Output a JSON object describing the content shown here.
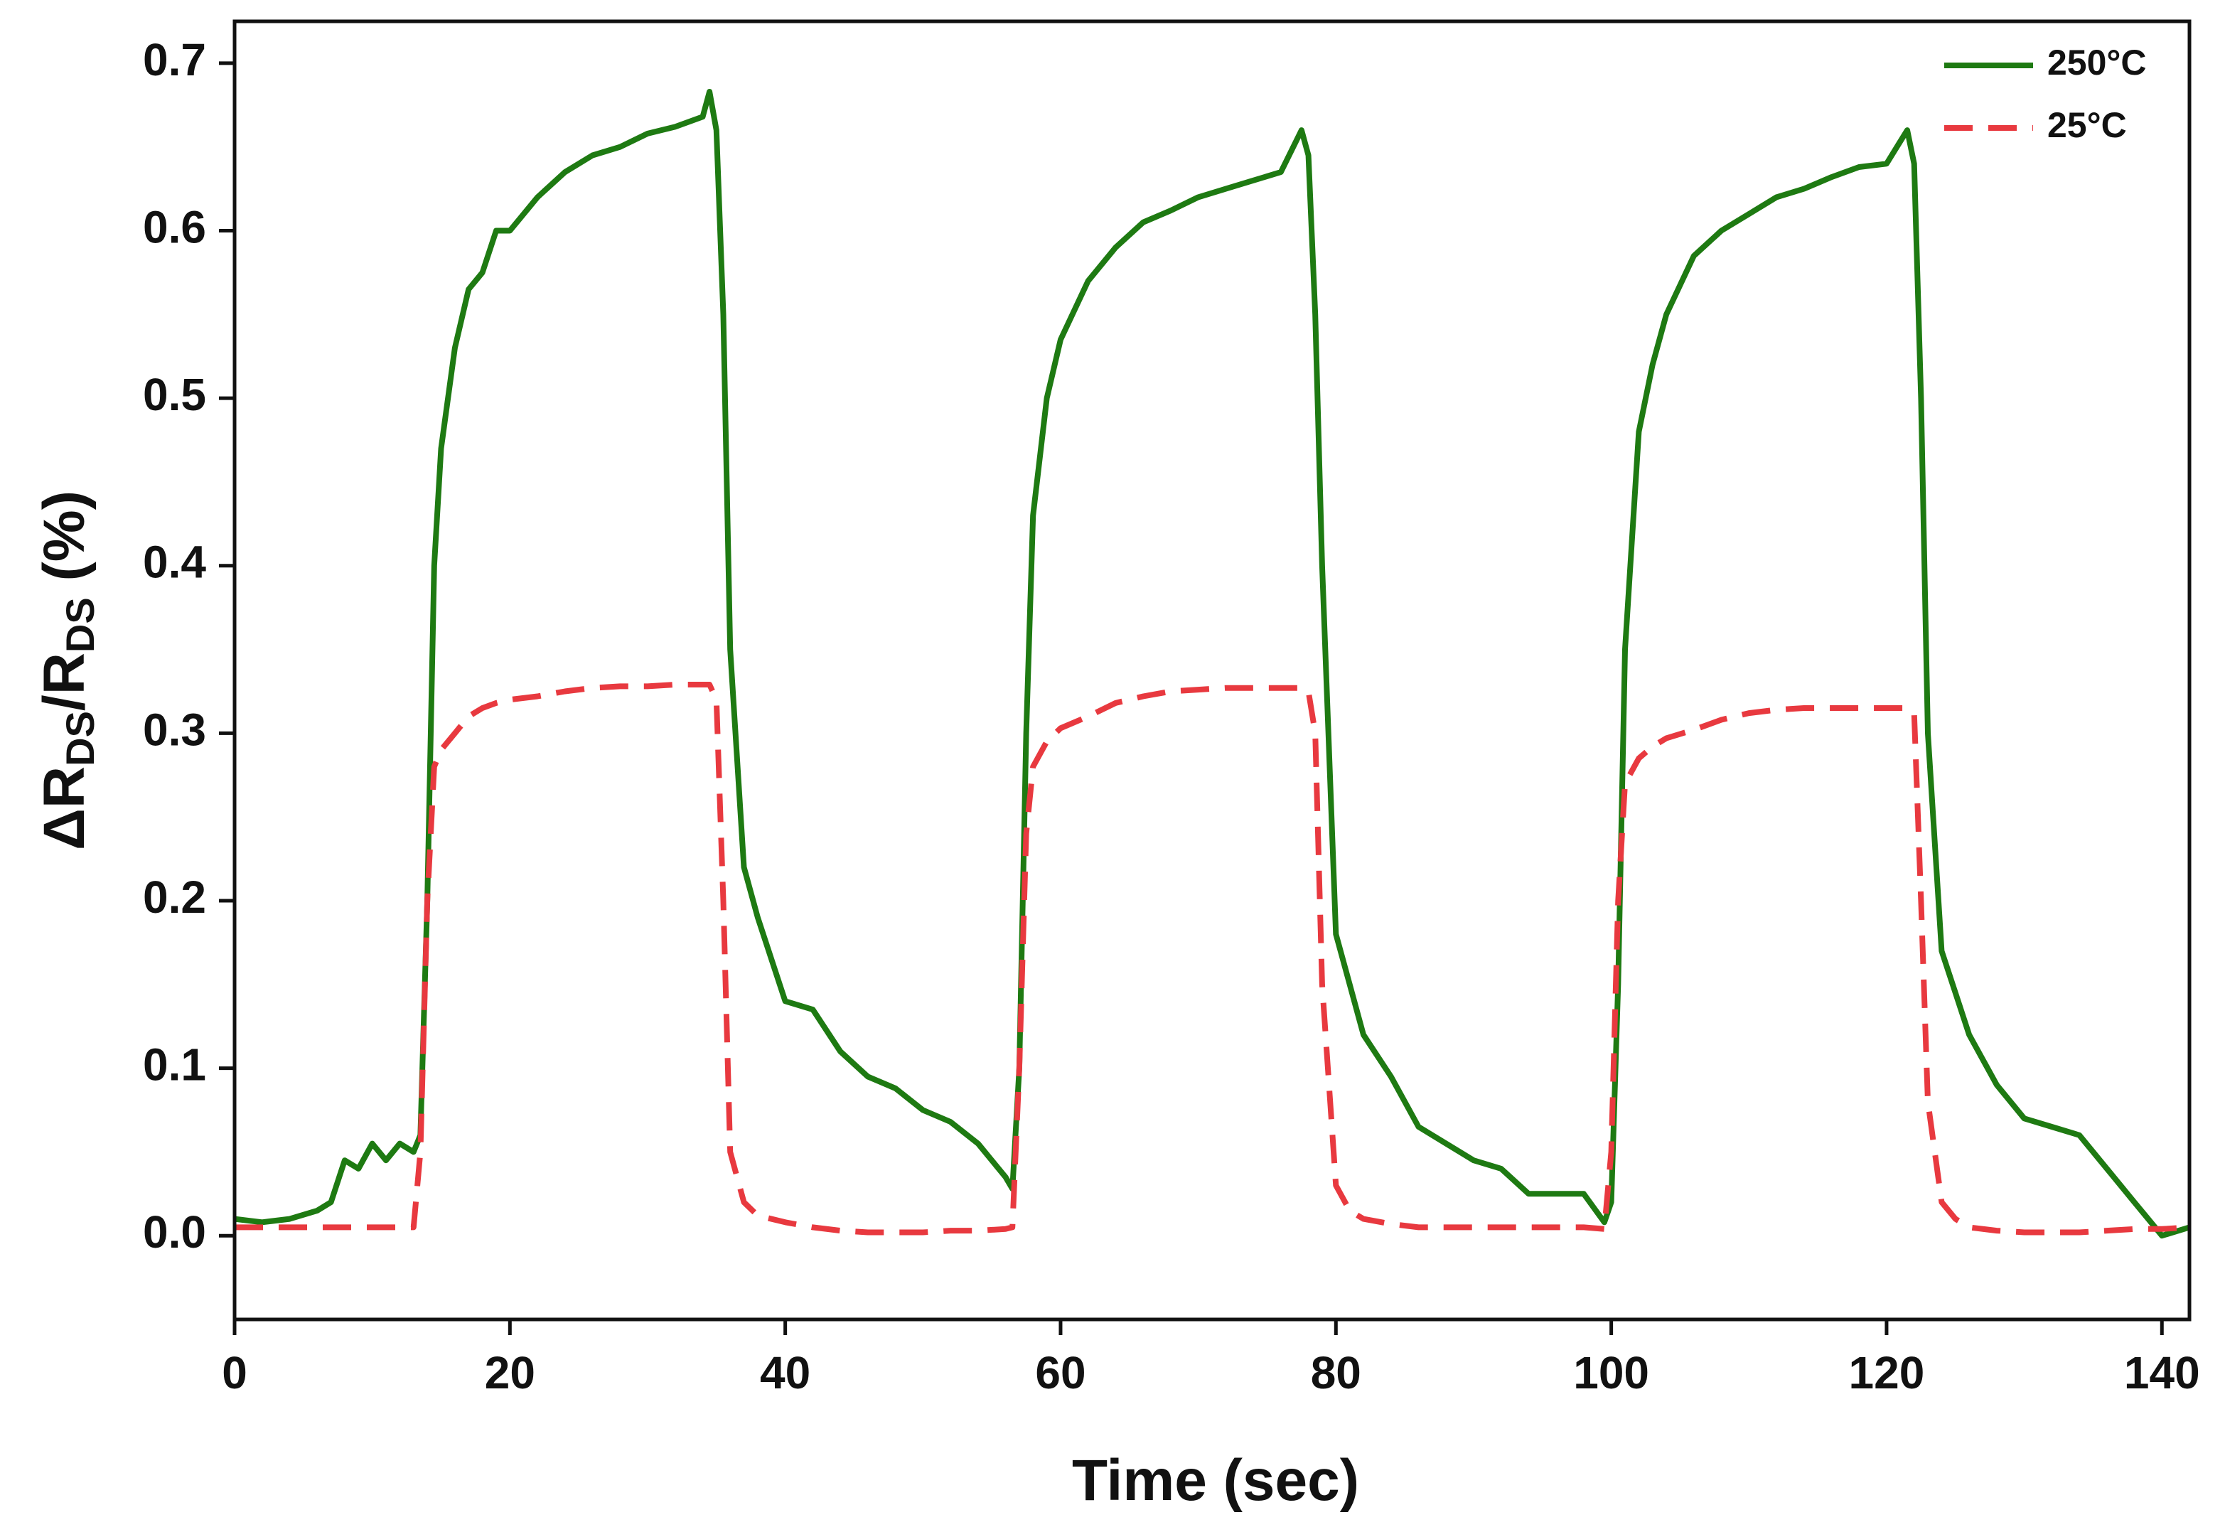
{
  "chart_data": {
    "type": "line",
    "xlabel": "Time (sec)",
    "ylabel": [
      "ΔR",
      "DS",
      "/R",
      "DS",
      " (%)"
    ],
    "x": [
      0,
      2,
      4,
      6,
      7,
      8,
      9,
      10,
      11,
      12,
      13,
      13.5,
      14,
      14.5,
      15,
      16,
      17,
      18,
      19,
      20,
      22,
      24,
      26,
      28,
      30,
      32,
      34,
      34.5,
      35,
      35.5,
      36,
      37,
      38,
      40,
      42,
      44,
      46,
      48,
      50,
      52,
      54,
      56,
      56.5,
      57,
      57.5,
      58,
      59,
      60,
      62,
      64,
      66,
      68,
      70,
      72,
      74,
      76,
      77.5,
      78,
      78.5,
      79,
      80,
      81,
      82,
      84,
      86,
      88,
      90,
      92,
      94,
      96,
      98,
      99.5,
      100,
      100.5,
      101,
      102,
      103,
      104,
      106,
      108,
      110,
      112,
      114,
      116,
      118,
      120,
      121.5,
      122,
      122.5,
      123,
      124,
      125,
      126,
      128,
      130,
      132,
      134,
      136,
      138,
      139,
      140,
      142
    ],
    "series": [
      {
        "name": "250°C",
        "color": "#1e7a12",
        "dash": false,
        "values": [
          0.01,
          0.008,
          0.01,
          0.015,
          0.02,
          0.045,
          0.04,
          0.055,
          0.045,
          0.055,
          0.05,
          0.06,
          0.2,
          0.4,
          0.47,
          0.53,
          0.565,
          0.575,
          0.6,
          0.6,
          0.62,
          0.635,
          0.645,
          0.65,
          0.658,
          0.662,
          0.668,
          0.683,
          0.66,
          0.55,
          0.35,
          0.22,
          0.19,
          0.14,
          0.135,
          0.11,
          0.095,
          0.088,
          0.075,
          0.068,
          0.055,
          0.035,
          0.028,
          0.1,
          0.3,
          0.43,
          0.5,
          0.535,
          0.57,
          0.59,
          0.605,
          0.612,
          0.62,
          0.625,
          0.63,
          0.635,
          0.66,
          0.645,
          0.55,
          0.4,
          0.18,
          0.15,
          0.12,
          0.095,
          0.065,
          0.055,
          0.045,
          0.04,
          0.025,
          0.025,
          0.025,
          0.008,
          0.02,
          0.15,
          0.35,
          0.48,
          0.52,
          0.55,
          0.585,
          0.6,
          0.61,
          0.62,
          0.625,
          0.632,
          0.638,
          0.64,
          0.66,
          0.64,
          0.5,
          0.3,
          0.17,
          0.145,
          0.12,
          0.09,
          0.07,
          0.065,
          0.06,
          0.04,
          0.02,
          0.01,
          0.0,
          0.005
        ]
      },
      {
        "name": "25°C",
        "color": "#e8393f",
        "dash": true,
        "values": [
          0.005,
          0.005,
          0.005,
          0.005,
          0.005,
          0.005,
          0.005,
          0.005,
          0.005,
          0.005,
          0.005,
          0.05,
          0.2,
          0.28,
          0.29,
          0.3,
          0.31,
          0.315,
          0.318,
          0.32,
          0.322,
          0.325,
          0.327,
          0.328,
          0.328,
          0.329,
          0.329,
          0.329,
          0.32,
          0.2,
          0.05,
          0.02,
          0.012,
          0.008,
          0.005,
          0.003,
          0.002,
          0.002,
          0.002,
          0.003,
          0.003,
          0.004,
          0.005,
          0.1,
          0.24,
          0.28,
          0.295,
          0.303,
          0.31,
          0.318,
          0.322,
          0.325,
          0.326,
          0.327,
          0.327,
          0.327,
          0.327,
          0.325,
          0.3,
          0.15,
          0.03,
          0.015,
          0.01,
          0.007,
          0.005,
          0.005,
          0.005,
          0.005,
          0.005,
          0.005,
          0.005,
          0.004,
          0.05,
          0.2,
          0.27,
          0.285,
          0.292,
          0.297,
          0.302,
          0.308,
          0.312,
          0.314,
          0.315,
          0.315,
          0.315,
          0.315,
          0.315,
          0.312,
          0.2,
          0.08,
          0.02,
          0.01,
          0.005,
          0.003,
          0.002,
          0.002,
          0.002,
          0.003,
          0.004,
          0.004,
          0.004,
          0.005
        ]
      }
    ],
    "xlim": [
      0,
      142
    ],
    "ylim": [
      -0.05,
      0.725
    ],
    "xticks": [
      0,
      20,
      40,
      60,
      80,
      100,
      120,
      140
    ],
    "yticks": [
      {
        "value": 0,
        "label": "0.0"
      },
      0.1,
      0.2,
      0.3,
      0.4,
      0.5,
      0.6,
      0.7
    ],
    "legend": "upper right"
  }
}
